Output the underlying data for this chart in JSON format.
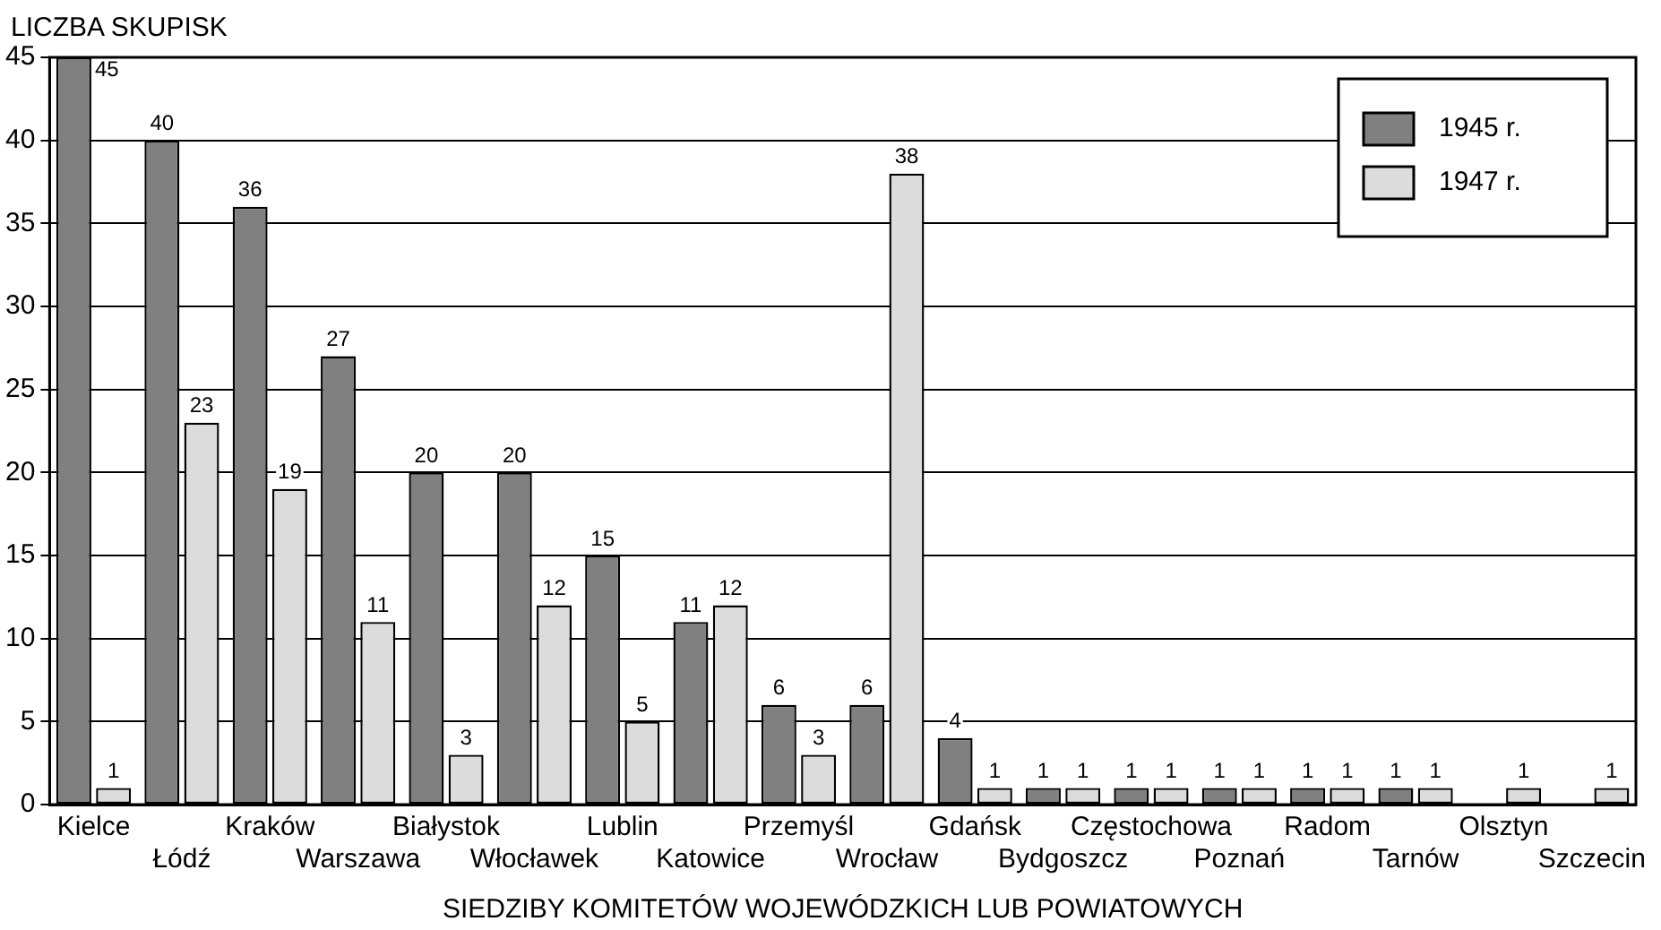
{
  "chart_data": {
    "type": "bar",
    "ylabel": "LICZBA SKUPISK",
    "xlabel": "SIEDZIBY KOMITETÓW WOJEWÓDZKICH LUB POWIATOWYCH",
    "categories": [
      "Kielce",
      "Łódź",
      "Kraków",
      "Warszawa",
      "Białystok",
      "Włocławek",
      "Lublin",
      "Katowice",
      "Przemyśl",
      "Wrocław",
      "Gdańsk",
      "Bydgoszcz",
      "Częstochowa",
      "Poznań",
      "Radom",
      "Tarnów",
      "Olsztyn",
      "Szczecin"
    ],
    "series": [
      {
        "name": "1945 r.",
        "color": "#808080",
        "values": [
          45,
          40,
          36,
          27,
          20,
          20,
          15,
          11,
          6,
          6,
          4,
          1,
          1,
          1,
          1,
          1,
          null,
          null
        ]
      },
      {
        "name": "1947 r.",
        "color": "#dcdcdc",
        "values": [
          1,
          23,
          19,
          11,
          3,
          12,
          5,
          12,
          3,
          38,
          1,
          1,
          1,
          1,
          1,
          1,
          1,
          1
        ]
      }
    ],
    "ylim": [
      0,
      45
    ],
    "yticks": [
      0,
      5,
      10,
      15,
      20,
      25,
      30,
      35,
      40,
      45
    ],
    "grid": "y",
    "legend": "top right",
    "data_labels": true
  }
}
